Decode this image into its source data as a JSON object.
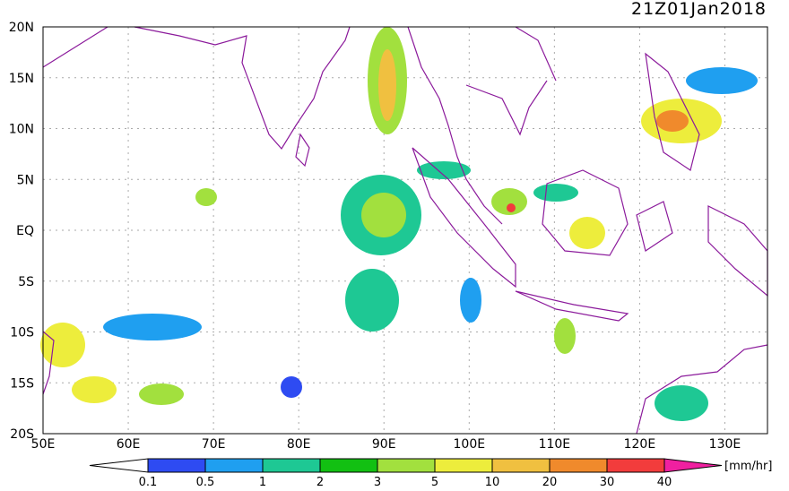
{
  "header": {
    "title": "21Z01Jan2018"
  },
  "map": {
    "x_labels": [
      "50E",
      "60E",
      "70E",
      "80E",
      "90E",
      "100E",
      "110E",
      "120E",
      "130E"
    ],
    "y_labels": [
      "20N",
      "15N",
      "10N",
      "5N",
      "EQ",
      "5S",
      "10S",
      "15S",
      "20S"
    ]
  },
  "colorbar": {
    "labels": [
      "0.1",
      "0.5",
      "1",
      "2",
      "3",
      "5",
      "10",
      "20",
      "30",
      "40"
    ],
    "colors": [
      "#ffffff",
      "#2e4bf2",
      "#1f9ff0",
      "#1ec894",
      "#12c012",
      "#a2e03e",
      "#eded3c",
      "#f0c040",
      "#f08a2c",
      "#f23c3c",
      "#f020a0"
    ],
    "unit": "[mm/hr]"
  }
}
